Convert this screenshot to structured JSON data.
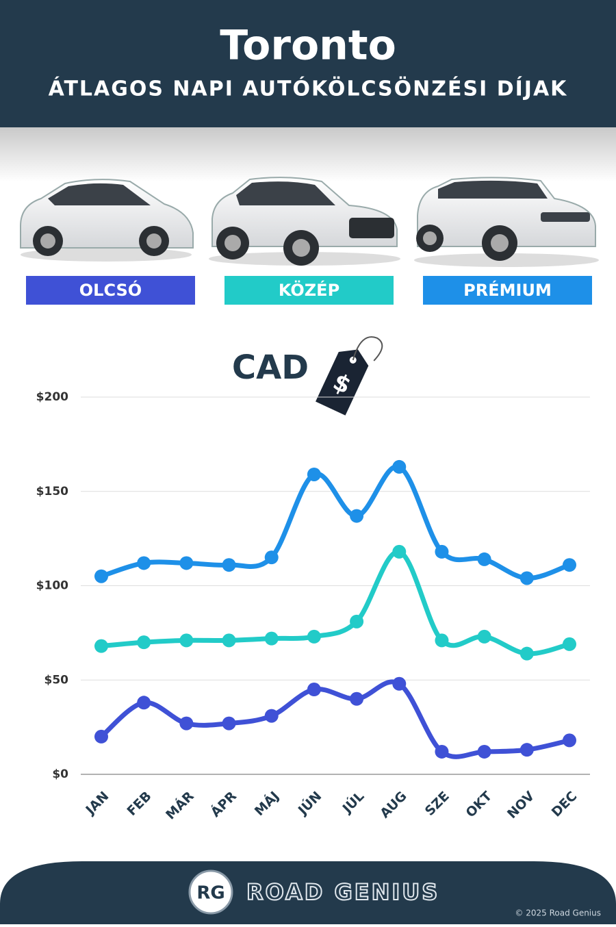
{
  "chart_data": {
    "type": "line",
    "title": "Toronto",
    "subtitle": "ÁTLAGOS NAPI AUTÓKÖLCSÖNZÉSI DÍJAK",
    "currency": "CAD",
    "currency_icon": "$",
    "categories": [
      "JAN",
      "FEB",
      "MÁR",
      "ÁPR",
      "MÁJ",
      "JÚN",
      "JÚL",
      "AUG",
      "SZE",
      "OKT",
      "NOV",
      "DEC"
    ],
    "series": [
      {
        "name": "OLCSÓ",
        "color": "#3f51d6",
        "values": [
          20,
          38,
          27,
          27,
          31,
          45,
          40,
          48,
          12,
          12,
          13,
          18
        ]
      },
      {
        "name": "KÖZÉP",
        "color": "#22cbc8",
        "values": [
          68,
          70,
          71,
          71,
          72,
          73,
          81,
          118,
          71,
          73,
          64,
          69
        ]
      },
      {
        "name": "PRÉMIUM",
        "color": "#1e90e8",
        "values": [
          105,
          112,
          112,
          111,
          115,
          159,
          137,
          163,
          118,
          114,
          104,
          111
        ]
      }
    ],
    "ylim": [
      0,
      200
    ],
    "yticks": [
      {
        "value": 0,
        "label": "$0"
      },
      {
        "value": 50,
        "label": "$50"
      },
      {
        "value": 100,
        "label": "$100"
      },
      {
        "value": 150,
        "label": "$150"
      },
      {
        "value": 200,
        "label": "$200"
      }
    ],
    "grid": true,
    "footer": {
      "logo": "RG",
      "brand": "ROAD GENIUS",
      "copyright": "© 2025 Road Genius"
    }
  }
}
